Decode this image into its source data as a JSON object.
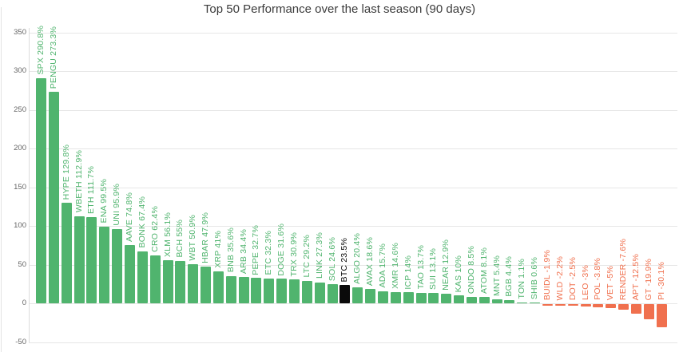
{
  "chart_data": {
    "type": "bar",
    "title": "Top 50 Performance over the last season (90 days)",
    "xlabel": "",
    "ylabel": "",
    "ylim": [
      -50,
      350
    ],
    "y_ticks": [
      350,
      300,
      250,
      200,
      150,
      100,
      50,
      0,
      -50
    ],
    "grid": true,
    "legend": false,
    "bar_labels_rotated_vertical": true,
    "highlight_name": "BTC",
    "colors": {
      "positive": "#50b46e",
      "negative": "#f0704e",
      "highlight": "#0a0a0a",
      "grid": "#e6e6e6",
      "axis_line": "#dcdcdc",
      "tick_text": "#666666",
      "title_text": "#3c3c3c"
    },
    "points": [
      {
        "name": "SPX",
        "label": "SPX 290.8%",
        "value": 290.8
      },
      {
        "name": "PENGU",
        "label": "PENGU 273.3%",
        "value": 273.3
      },
      {
        "name": "HYPE",
        "label": "HYPE 129.8%",
        "value": 129.8
      },
      {
        "name": "WBETH",
        "label": "WBETH 112.9%",
        "value": 112.9
      },
      {
        "name": "ETH",
        "label": "ETH 111.7%",
        "value": 111.7
      },
      {
        "name": "ENA",
        "label": "ENA 99.5%",
        "value": 99.5
      },
      {
        "name": "UNI",
        "label": "UNI 95.9%",
        "value": 95.9
      },
      {
        "name": "AAVE",
        "label": "AAVE 74.8%",
        "value": 74.8
      },
      {
        "name": "BONK",
        "label": "BONK 67.4%",
        "value": 67.4
      },
      {
        "name": "CRO",
        "label": "CRO 62.4%",
        "value": 62.4
      },
      {
        "name": "XLM",
        "label": "XLM 56.1%",
        "value": 56.1
      },
      {
        "name": "BCH",
        "label": "BCH 55%",
        "value": 55
      },
      {
        "name": "WBT",
        "label": "WBT 50.9%",
        "value": 50.9
      },
      {
        "name": "HBAR",
        "label": "HBAR 47.9%",
        "value": 47.9
      },
      {
        "name": "XRP",
        "label": "XRP 41%",
        "value": 41
      },
      {
        "name": "BNB",
        "label": "BNB 35.6%",
        "value": 35.6
      },
      {
        "name": "ARB",
        "label": "ARB 34.4%",
        "value": 34.4
      },
      {
        "name": "PEPE",
        "label": "PEPE 32.7%",
        "value": 32.7
      },
      {
        "name": "ETC",
        "label": "ETC 32.3%",
        "value": 32.3
      },
      {
        "name": "DOGE",
        "label": "DOGE 31.6%",
        "value": 31.6
      },
      {
        "name": "TRX",
        "label": "TRX 30.9%",
        "value": 30.9
      },
      {
        "name": "LTC",
        "label": "LTC 29.2%",
        "value": 29.2
      },
      {
        "name": "LINK",
        "label": "LINK 27.3%",
        "value": 27.3
      },
      {
        "name": "SOL",
        "label": "SOL 24.6%",
        "value": 24.6
      },
      {
        "name": "BTC",
        "label": "BTC 23.5%",
        "value": 23.5
      },
      {
        "name": "ALGO",
        "label": "ALGO 20.4%",
        "value": 20.4
      },
      {
        "name": "AVAX",
        "label": "AVAX 18.6%",
        "value": 18.6
      },
      {
        "name": "ADA",
        "label": "ADA 15.7%",
        "value": 15.7
      },
      {
        "name": "XMR",
        "label": "XMR 14.6%",
        "value": 14.6
      },
      {
        "name": "ICP",
        "label": "ICP 14%",
        "value": 14
      },
      {
        "name": "TAO",
        "label": "TAO 13.7%",
        "value": 13.7
      },
      {
        "name": "SUI",
        "label": "SUI 13.1%",
        "value": 13.1
      },
      {
        "name": "NEAR",
        "label": "NEAR 12.9%",
        "value": 12.9
      },
      {
        "name": "KAS",
        "label": "KAS 10%",
        "value": 10
      },
      {
        "name": "ONDO",
        "label": "ONDO 8.5%",
        "value": 8.5
      },
      {
        "name": "ATOM",
        "label": "ATOM 8.1%",
        "value": 8.1
      },
      {
        "name": "MNT",
        "label": "MNT 5.4%",
        "value": 5.4
      },
      {
        "name": "BGB",
        "label": "BGB 4.4%",
        "value": 4.4
      },
      {
        "name": "TON",
        "label": "TON 1.1%",
        "value": 1.1
      },
      {
        "name": "SHIB",
        "label": "SHIB 0.6%",
        "value": 0.6
      },
      {
        "name": "BUIDL",
        "label": "BUIDL -1.9%",
        "value": -1.9
      },
      {
        "name": "WLD",
        "label": "WLD -2.2%",
        "value": -2.2
      },
      {
        "name": "DOT",
        "label": "DOT -2.5%",
        "value": -2.5
      },
      {
        "name": "LEO",
        "label": "LEO -3%",
        "value": -3
      },
      {
        "name": "POL",
        "label": "POL -3.8%",
        "value": -3.8
      },
      {
        "name": "VET",
        "label": "VET -5%",
        "value": -5
      },
      {
        "name": "RENDER",
        "label": "RENDER -7.6%",
        "value": -7.6
      },
      {
        "name": "APT",
        "label": "APT -12.5%",
        "value": -12.5
      },
      {
        "name": "GT",
        "label": "GT -19.9%",
        "value": -19.9
      },
      {
        "name": "PI",
        "label": "PI -30.1%",
        "value": -30.1
      }
    ]
  }
}
